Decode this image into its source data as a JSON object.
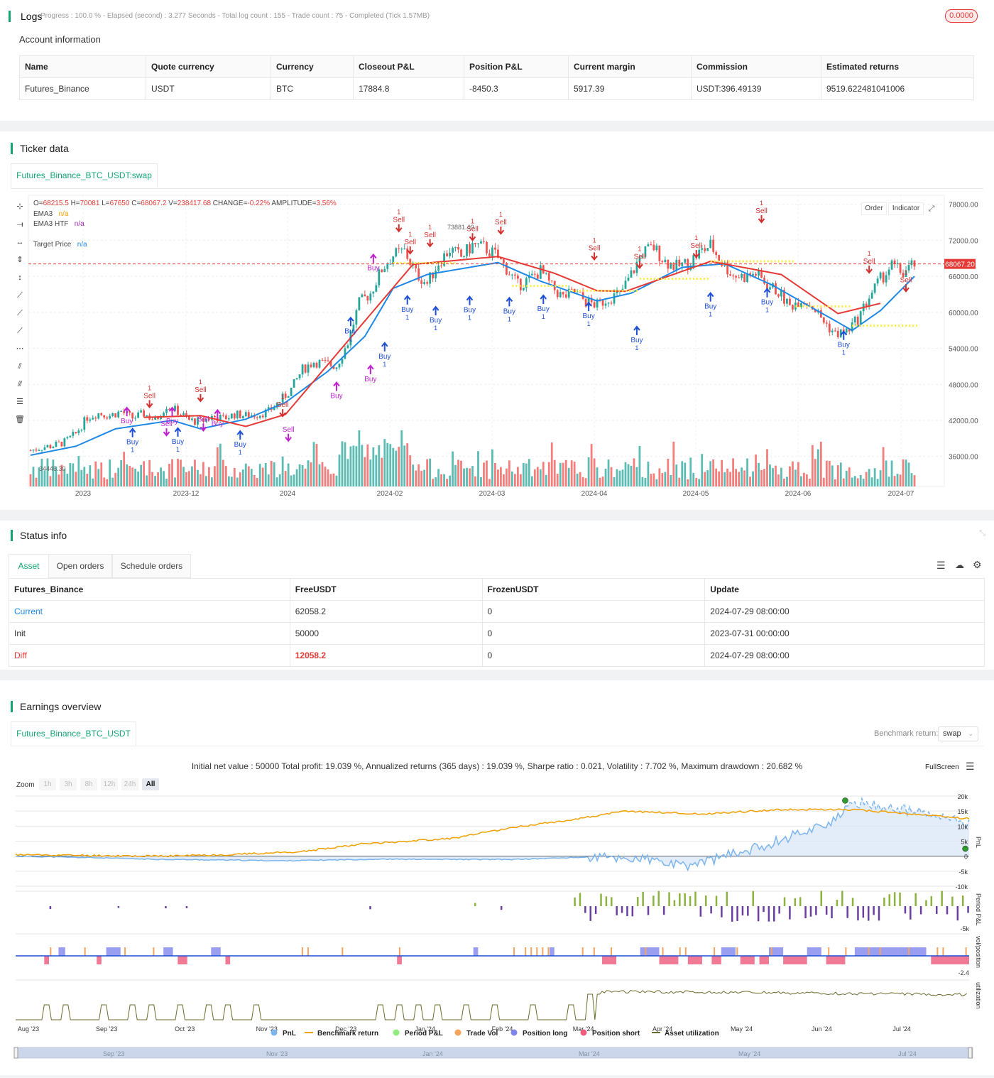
{
  "logs": {
    "title": "Logs",
    "status": "Progress : 100.0 % - Elapsed (second) : 3.277 Seconds - Total log count : 155 - Trade count : 75 - Completed (Tick 1.57MB)",
    "badge": "0.0000"
  },
  "account": {
    "title": "Account information",
    "columns": [
      "Name",
      "Quote currency",
      "Currency",
      "Closeout P&L",
      "Position P&L",
      "Current margin",
      "Commission",
      "Estimated returns"
    ],
    "row": [
      "Futures_Binance",
      "USDT",
      "BTC",
      "17884.8",
      "-8450.3",
      "5917.39",
      "USDT:396.49139",
      "9519.622481041006"
    ]
  },
  "ticker": {
    "title": "Ticker data",
    "tab": "Futures_Binance_BTC_USDT:swap",
    "ohlc": {
      "o": "68215.5",
      "h": "70081",
      "l": "67650",
      "c": "68067.2",
      "v": "238417.68",
      "change": "-0.22%",
      "amplitude": "3.56%"
    },
    "ohlc_labels": {
      "o": "O=",
      "h": "H=",
      "l": "L=",
      "c": "C=",
      "v": "V=",
      "change": "CHANGE=",
      "amplitude": "AMPLITUDE="
    },
    "legend": [
      {
        "name": "EMA3",
        "value": "n/a",
        "color": "#f0a000"
      },
      {
        "name": "EMA3 HTF",
        "value": "n/a",
        "color": "#9c27b0"
      },
      {
        "name": "Target Price",
        "value": "n/a",
        "color": "#1e88e5"
      }
    ],
    "buttons": {
      "order": "Order",
      "indicator": "Indicator"
    },
    "price_label": "68067.20",
    "high_marker": "73881.40",
    "low_marker": "34446.30",
    "buy_label": "Buy",
    "sell_label": "Sell",
    "qty_label": "1",
    "colors": {
      "up": "#26a69a",
      "down": "#ef5350",
      "ema": "#1e88e5",
      "ema_htf": "#e53935",
      "target": "#ffeb3b",
      "buy": "#1e4fd6",
      "sell": "#d32f2f",
      "magenta": "#c020d0"
    }
  },
  "chart_data": [
    {
      "type": "candlestick",
      "title": "",
      "x_ticks": [
        "2023",
        "2023-12",
        "2024",
        "2024-02",
        "2024-03",
        "2024-04",
        "2024-05",
        "2024-06",
        "2024-07"
      ],
      "y_ticks": [
        78000,
        72000,
        66000,
        60000,
        54000,
        48000,
        42000,
        36000
      ],
      "ylim": [
        31000,
        79500
      ],
      "last_price": 68067.2,
      "high": 73881.4,
      "low": 34446.3,
      "close_path": [
        [
          0,
          37000
        ],
        [
          4,
          37500
        ],
        [
          8,
          37800
        ],
        [
          12,
          38400
        ],
        [
          16,
          39800
        ],
        [
          20,
          42500
        ],
        [
          24,
          43200
        ],
        [
          28,
          42800
        ],
        [
          32,
          43500
        ],
        [
          36,
          42400
        ],
        [
          40,
          43100
        ],
        [
          44,
          42000
        ],
        [
          48,
          44500
        ],
        [
          52,
          43500
        ],
        [
          56,
          42000
        ],
        [
          60,
          41800
        ],
        [
          64,
          42600
        ],
        [
          68,
          42300
        ],
        [
          72,
          43000
        ],
        [
          76,
          42800
        ],
        [
          80,
          43000
        ],
        [
          84,
          43500
        ],
        [
          88,
          45200
        ],
        [
          92,
          47200
        ],
        [
          96,
          50500
        ],
        [
          100,
          51800
        ],
        [
          104,
          51400
        ],
        [
          108,
          51100
        ],
        [
          112,
          55000
        ],
        [
          116,
          61500
        ],
        [
          120,
          63200
        ],
        [
          124,
          67200
        ],
        [
          128,
          69500
        ],
        [
          132,
          70200
        ],
        [
          136,
          66500
        ],
        [
          140,
          64800
        ],
        [
          144,
          68300
        ],
        [
          148,
          70500
        ],
        [
          152,
          69200
        ],
        [
          156,
          71200
        ],
        [
          160,
          70800
        ],
        [
          164,
          69600
        ],
        [
          168,
          67300
        ],
        [
          172,
          64500
        ],
        [
          176,
          65500
        ],
        [
          180,
          66900
        ],
        [
          184,
          64200
        ],
        [
          188,
          62500
        ],
        [
          192,
          63400
        ],
        [
          196,
          61800
        ],
        [
          200,
          61200
        ],
        [
          204,
          62400
        ],
        [
          208,
          63000
        ],
        [
          212,
          66300
        ],
        [
          216,
          70000
        ],
        [
          220,
          70800
        ],
        [
          224,
          68500
        ],
        [
          228,
          67600
        ],
        [
          232,
          68200
        ],
        [
          236,
          69900
        ],
        [
          240,
          71200
        ],
        [
          244,
          68300
        ],
        [
          248,
          66200
        ],
        [
          252,
          65900
        ],
        [
          256,
          66500
        ],
        [
          260,
          64600
        ],
        [
          264,
          63400
        ],
        [
          268,
          61000
        ],
        [
          272,
          62300
        ],
        [
          276,
          61000
        ],
        [
          280,
          58500
        ],
        [
          284,
          56400
        ],
        [
          288,
          56800
        ],
        [
          292,
          58900
        ],
        [
          296,
          62600
        ],
        [
          300,
          65500
        ],
        [
          304,
          67800
        ],
        [
          308,
          66500
        ],
        [
          312,
          68067
        ]
      ],
      "ema": [
        [
          0,
          36200
        ],
        [
          16,
          37700
        ],
        [
          30,
          40600
        ],
        [
          50,
          42000
        ],
        [
          60,
          40600
        ],
        [
          76,
          42200
        ],
        [
          90,
          45000
        ],
        [
          105,
          50200
        ],
        [
          118,
          56000
        ],
        [
          128,
          64000
        ],
        [
          140,
          66300
        ],
        [
          165,
          68300
        ],
        [
          180,
          65200
        ],
        [
          200,
          61900
        ],
        [
          212,
          63200
        ],
        [
          230,
          67500
        ],
        [
          245,
          68100
        ],
        [
          262,
          64500
        ],
        [
          275,
          61000
        ],
        [
          290,
          57000
        ],
        [
          300,
          60300
        ],
        [
          312,
          66000
        ]
      ],
      "ema_htf": [
        [
          40,
          42500
        ],
        [
          60,
          42800
        ],
        [
          76,
          41000
        ],
        [
          90,
          43000
        ],
        [
          135,
          68000
        ],
        [
          165,
          69300
        ],
        [
          185,
          66500
        ],
        [
          200,
          63600
        ],
        [
          210,
          63500
        ],
        [
          240,
          68500
        ],
        [
          265,
          66300
        ],
        [
          285,
          59800
        ],
        [
          300,
          61500
        ]
      ],
      "target_segments": [
        [
          [
            128,
            68200
          ],
          [
            150,
            68200
          ]
        ],
        [
          [
            170,
            64400
          ],
          [
            190,
            64400
          ]
        ],
        [
          [
            190,
            63600
          ],
          [
            215,
            63600
          ]
        ],
        [
          [
            215,
            65600
          ],
          [
            240,
            65600
          ]
        ],
        [
          [
            240,
            68500
          ],
          [
            270,
            68500
          ]
        ],
        [
          [
            270,
            61000
          ],
          [
            290,
            61000
          ]
        ],
        [
          [
            290,
            57800
          ],
          [
            313,
            57800
          ]
        ]
      ],
      "buys": [
        [
          36,
          40500,
          "blue"
        ],
        [
          52,
          40600,
          "blue"
        ],
        [
          74,
          40100,
          "blue"
        ],
        [
          125,
          54800,
          "blue"
        ],
        [
          133,
          62600,
          "blue"
        ],
        [
          143,
          60800,
          "blue"
        ],
        [
          155,
          62500,
          "blue"
        ],
        [
          169,
          62300,
          "blue"
        ],
        [
          181,
          62700,
          "blue"
        ],
        [
          197,
          61500,
          "blue"
        ],
        [
          214,
          57500,
          "blue"
        ],
        [
          240,
          63100,
          "blue"
        ],
        [
          260,
          63800,
          "blue"
        ],
        [
          287,
          56700,
          "blue"
        ],
        [
          34,
          44000,
          "magenta"
        ],
        [
          50,
          44000,
          "magenta"
        ],
        [
          66,
          43600,
          "magenta"
        ],
        [
          108,
          48200,
          "magenta"
        ],
        [
          120,
          51000,
          "magenta"
        ],
        [
          121,
          69500,
          "magenta"
        ],
        [
          113,
          59000,
          "blue"
        ]
      ],
      "sells": [
        [
          42,
          44200,
          "red"
        ],
        [
          60,
          45200,
          "red"
        ],
        [
          89,
          42700,
          "red"
        ],
        [
          141,
          71000,
          "red"
        ],
        [
          156,
          72000,
          "red"
        ],
        [
          166,
          73100,
          "red"
        ],
        [
          199,
          68800,
          "red"
        ],
        [
          215,
          67400,
          "red"
        ],
        [
          235,
          69200,
          "red"
        ],
        [
          258,
          75000,
          "red"
        ],
        [
          296,
          66600,
          "red"
        ],
        [
          309,
          63500,
          "red"
        ],
        [
          48,
          39500,
          "magenta"
        ],
        [
          61,
          40300,
          "magenta"
        ],
        [
          91,
          38600,
          "magenta"
        ],
        [
          130,
          73500,
          "red"
        ],
        [
          134,
          69800,
          "red"
        ]
      ]
    },
    {
      "type": "line",
      "title": "Initial net value : 50000 Total profit: 19.039 %, Annualized returns (365 days) : 19.039 %, Sharpe ratio : 0.021, Volatility : 7.702 %, Maximum drawdown : 20.682 %",
      "x_ticks": [
        "Aug '23",
        "Sep '23",
        "Oct '23",
        "Nov '23",
        "Dec '23",
        "Jan '24",
        "Feb '24",
        "Mar '24",
        "Apr '24",
        "May '24",
        "Jun '24",
        "Jul '24"
      ],
      "navigator_ticks": [
        "Sep '23",
        "Nov '23",
        "Jan '24",
        "Mar '24",
        "May '24",
        "Jul '24"
      ],
      "y_ticks": [
        "20k",
        "15k",
        "10k",
        "5k",
        "0",
        "-5k",
        "-10k"
      ],
      "ylim": [
        -10000,
        20000
      ],
      "series": [
        {
          "name": "PnL",
          "color": "#7cb5ec"
        },
        {
          "name": "Benchmark return",
          "color": "#f0a000"
        },
        {
          "name": "Period P&L",
          "color": "#90ed7d"
        },
        {
          "name": "Trade Vol",
          "color": "#f7a35c"
        },
        {
          "name": "Position long",
          "color": "#8085e9"
        },
        {
          "name": "Position short",
          "color": "#f15c80"
        },
        {
          "name": "Asset utilization",
          "color": "#6b6b2e"
        }
      ],
      "pnl": [
        [
          0,
          0
        ],
        [
          8,
          -500
        ],
        [
          14,
          -1000
        ],
        [
          28,
          -1500
        ],
        [
          38,
          -1000
        ],
        [
          52,
          -1100
        ],
        [
          60,
          -300
        ],
        [
          66,
          -1000
        ],
        [
          70,
          -3500
        ],
        [
          72,
          -2000
        ],
        [
          78,
          3000
        ],
        [
          86,
          12000
        ],
        [
          88,
          18000
        ],
        [
          94,
          15000
        ],
        [
          100,
          11000
        ]
      ],
      "benchmark": [
        [
          0,
          500
        ],
        [
          15,
          0
        ],
        [
          22,
          500
        ],
        [
          30,
          1500
        ],
        [
          36,
          4000
        ],
        [
          46,
          6000
        ],
        [
          52,
          9500
        ],
        [
          58,
          12000
        ],
        [
          64,
          15000
        ],
        [
          72,
          14000
        ],
        [
          80,
          15500
        ],
        [
          88,
          15500
        ],
        [
          96,
          13500
        ],
        [
          100,
          12500
        ]
      ]
    }
  ],
  "ui": {
    "zoom_label": "Zoom",
    "zoom_options": [
      "1h",
      "3h",
      "8h",
      "12h",
      "24h",
      "All"
    ],
    "fullscreen": "FullScreen",
    "benchmark_label": "Benchmark return:",
    "benchmark_value": "swap",
    "axis_pnl": "PnL",
    "axis_period": "Period P&L",
    "axis_pos": "vol/position",
    "axis_util": "utilization",
    "period_tick": "-5k",
    "pos_tick": "-2.4"
  },
  "status": {
    "title": "Status info",
    "tabs": [
      "Asset",
      "Open orders",
      "Schedule orders"
    ],
    "columns": [
      "Futures_Binance",
      "FreeUSDT",
      "FrozenUSDT",
      "Update"
    ],
    "rows": [
      [
        "Current",
        "62058.2",
        "0",
        "2024-07-29 08:00:00"
      ],
      [
        "Init",
        "50000",
        "0",
        "2023-07-31 00:00:00"
      ],
      [
        "Diff",
        "12058.2",
        "0",
        "2024-07-29 08:00:00"
      ]
    ]
  },
  "earnings": {
    "title": "Earnings overview",
    "tab": "Futures_Binance_BTC_USDT"
  }
}
